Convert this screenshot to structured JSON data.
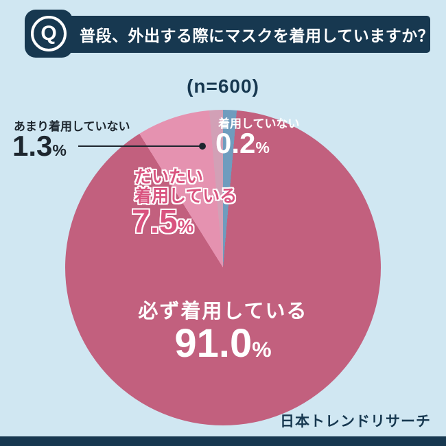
{
  "colors": {
    "background": "#d0e7f2",
    "navy": "#173850",
    "rose": "#c2607e",
    "pink": "#e592b0",
    "mauve": "#d2a0b6",
    "blue": "#6f9cbe",
    "pink_text": "#d9537f",
    "white": "#ffffff"
  },
  "header": {
    "q": "Q",
    "title": "普段、外出する際にマスクを着用していますか？"
  },
  "chart_data": {
    "type": "pie",
    "title": "普段、外出する際にマスクを着用していますか？",
    "sample_label": "(n=600)",
    "sample_size": 600,
    "unit": "%",
    "direction": "clockwise",
    "start_angle": "12 o'clock",
    "legend": false,
    "slices": [
      {
        "label": "着用していない",
        "value": 0.2,
        "color": "#6f9cbe"
      },
      {
        "label": "必ず着用している",
        "value": 91.0,
        "color": "#c2607e"
      },
      {
        "label": "だいたい着用している",
        "value": 7.5,
        "color": "#e592b0"
      },
      {
        "label": "あまり着用していない",
        "value": 1.3,
        "color": "#d2a0b6"
      }
    ]
  },
  "annotations": {
    "always": {
      "label": "必ず着用している",
      "pct": "91.0",
      "unit": "%"
    },
    "mostly": {
      "line1": "だいたい",
      "line2": "着用している",
      "pct": "7.5",
      "unit": "%"
    },
    "rarely": {
      "label": "あまり着用していない",
      "pct": "1.3",
      "unit": "%"
    },
    "never": {
      "label": "着用していない",
      "pct": "0.2",
      "unit": "%"
    }
  },
  "footer": {
    "source": "日本トレンドリサーチ"
  }
}
